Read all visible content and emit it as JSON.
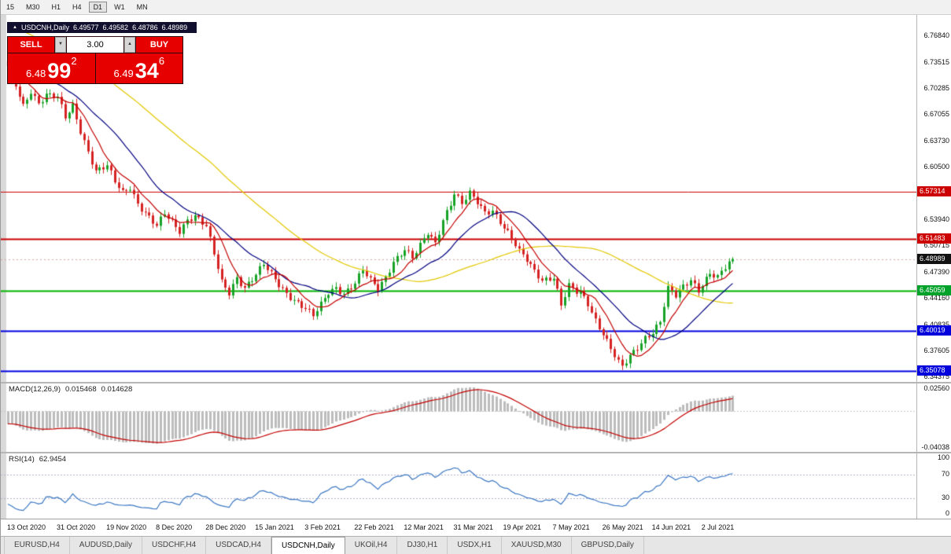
{
  "toolbar": {
    "periods": [
      {
        "label": "15",
        "active": false
      },
      {
        "label": "M30",
        "active": false
      },
      {
        "label": "H1",
        "active": false
      },
      {
        "label": "H4",
        "active": false
      },
      {
        "label": "D1",
        "active": true
      },
      {
        "label": "W1",
        "active": false
      },
      {
        "label": "MN",
        "active": false
      }
    ]
  },
  "chart": {
    "symbol_period": "USDCNH,Daily",
    "open": "6.49577",
    "high": "6.49582",
    "low": "6.48786",
    "close": "6.48989"
  },
  "trade_panel": {
    "sell_label": "SELL",
    "buy_label": "BUY",
    "volume": "3.00",
    "sell_price": {
      "prefix": "6.48",
      "big": "99",
      "sup": "2"
    },
    "buy_price": {
      "prefix": "6.49",
      "big": "34",
      "sup": "6"
    }
  },
  "price_axis": {
    "ticks": [
      "6.76840",
      "6.73515",
      "6.70285",
      "6.67055",
      "6.63730",
      "6.60500",
      "6.53940",
      "6.50715",
      "6.47390",
      "6.44160",
      "6.40835",
      "6.37605",
      "6.34375"
    ],
    "badges": [
      {
        "text": "6.57314",
        "value": 6.57314,
        "color": "#cc0000",
        "name": "resistance-badge-1"
      },
      {
        "text": "6.51483",
        "value": 6.51483,
        "color": "#cc0000",
        "name": "resistance-badge-2"
      },
      {
        "text": "6.48989",
        "value": 6.48989,
        "color": "#111111",
        "name": "current-price-badge"
      },
      {
        "text": "6.45059",
        "value": 6.45059,
        "color": "#00a22a",
        "name": "support-badge-green"
      },
      {
        "text": "6.40019",
        "value": 6.40019,
        "color": "#0000dd",
        "name": "support-badge-blue-1"
      },
      {
        "text": "6.35078",
        "value": 6.35078,
        "color": "#0000dd",
        "name": "support-badge-blue-2"
      }
    ]
  },
  "macd": {
    "label": "MACD(12,26,9)",
    "main_value": "0.015468",
    "signal_value": "0.014628",
    "axis_top": "0.02560",
    "axis_bottom": "-0.04038"
  },
  "rsi": {
    "label": "RSI(14)",
    "value": "62.9454",
    "axis_100": "100",
    "axis_70": "70",
    "axis_30": "30",
    "axis_0": "0"
  },
  "date_axis": [
    "13 Oct 2020",
    "31 Oct 2020",
    "19 Nov 2020",
    "8 Dec 2020",
    "28 Dec 2020",
    "15 Jan 2021",
    "3 Feb 2021",
    "22 Feb 2021",
    "12 Mar 2021",
    "31 Mar 2021",
    "19 Apr 2021",
    "7 May 2021",
    "26 May 2021",
    "14 Jun 2021",
    "2 Jul 2021"
  ],
  "tabs": [
    {
      "label": "EURUSD,H4",
      "active": false
    },
    {
      "label": "AUDUSD,Daily",
      "active": false
    },
    {
      "label": "USDCHF,H4",
      "active": false
    },
    {
      "label": "USDCAD,H4",
      "active": false
    },
    {
      "label": "USDCNH,Daily",
      "active": true
    },
    {
      "label": "UKOil,H4",
      "active": false
    },
    {
      "label": "DJ30,H1",
      "active": false
    },
    {
      "label": "USDX,H1",
      "active": false
    },
    {
      "label": "XAUUSD,M30",
      "active": false
    },
    {
      "label": "GBPUSD,Daily",
      "active": false
    }
  ],
  "chart_data": {
    "type": "candlestick",
    "symbol": "USDCNH",
    "timeframe": "Daily",
    "candle_count": 191,
    "label_step": 13,
    "last_close": 6.48989,
    "y_range": [
      6.3368,
      6.7938
    ],
    "close_anchors": [
      [
        0,
        6.728
      ],
      [
        2,
        6.705
      ],
      [
        4,
        6.68
      ],
      [
        6,
        6.7
      ],
      [
        8,
        6.685
      ],
      [
        10,
        6.695
      ],
      [
        13,
        6.69
      ],
      [
        15,
        6.665
      ],
      [
        17,
        6.68
      ],
      [
        19,
        6.65
      ],
      [
        21,
        6.625
      ],
      [
        23,
        6.6
      ],
      [
        26,
        6.605
      ],
      [
        28,
        6.585
      ],
      [
        30,
        6.572
      ],
      [
        32,
        6.58
      ],
      [
        34,
        6.56
      ],
      [
        36,
        6.548
      ],
      [
        39,
        6.53
      ],
      [
        41,
        6.545
      ],
      [
        43,
        6.535
      ],
      [
        45,
        6.525
      ],
      [
        47,
        6.54
      ],
      [
        49,
        6.545
      ],
      [
        52,
        6.53
      ],
      [
        54,
        6.495
      ],
      [
        56,
        6.46
      ],
      [
        58,
        6.448
      ],
      [
        60,
        6.468
      ],
      [
        62,
        6.455
      ],
      [
        65,
        6.47
      ],
      [
        67,
        6.482
      ],
      [
        69,
        6.47
      ],
      [
        71,
        6.458
      ],
      [
        73,
        6.448
      ],
      [
        75,
        6.44
      ],
      [
        78,
        6.428
      ],
      [
        80,
        6.418
      ],
      [
        82,
        6.432
      ],
      [
        84,
        6.448
      ],
      [
        86,
        6.455
      ],
      [
        88,
        6.448
      ],
      [
        91,
        6.46
      ],
      [
        93,
        6.475
      ],
      [
        95,
        6.462
      ],
      [
        97,
        6.452
      ],
      [
        99,
        6.468
      ],
      [
        101,
        6.488
      ],
      [
        104,
        6.502
      ],
      [
        106,
        6.49
      ],
      [
        108,
        6.505
      ],
      [
        110,
        6.522
      ],
      [
        112,
        6.51
      ],
      [
        114,
        6.54
      ],
      [
        116,
        6.56
      ],
      [
        117,
        6.572
      ],
      [
        119,
        6.558
      ],
      [
        121,
        6.57
      ],
      [
        123,
        6.56
      ],
      [
        125,
        6.548
      ],
      [
        127,
        6.552
      ],
      [
        130,
        6.53
      ],
      [
        132,
        6.515
      ],
      [
        134,
        6.498
      ],
      [
        136,
        6.488
      ],
      [
        138,
        6.475
      ],
      [
        140,
        6.465
      ],
      [
        143,
        6.468
      ],
      [
        145,
        6.432
      ],
      [
        147,
        6.455
      ],
      [
        149,
        6.448
      ],
      [
        150,
        6.448
      ],
      [
        152,
        6.435
      ],
      [
        154,
        6.415
      ],
      [
        156,
        6.398
      ],
      [
        158,
        6.378
      ],
      [
        160,
        6.36
      ],
      [
        161,
        6.354
      ],
      [
        163,
        6.368
      ],
      [
        165,
        6.38
      ],
      [
        167,
        6.393
      ],
      [
        169,
        6.4
      ],
      [
        171,
        6.412
      ],
      [
        173,
        6.452
      ],
      [
        175,
        6.443
      ],
      [
        177,
        6.455
      ],
      [
        179,
        6.465
      ],
      [
        181,
        6.452
      ],
      [
        182,
        6.46
      ],
      [
        184,
        6.472
      ],
      [
        186,
        6.466
      ],
      [
        188,
        6.478
      ],
      [
        190,
        6.48989
      ]
    ],
    "levels": [
      {
        "value": 6.57314,
        "color": "#cc0000",
        "width": 1
      },
      {
        "value": 6.51483,
        "color": "#cc0000",
        "width": 2
      },
      {
        "value": 6.45059,
        "color": "#00b400",
        "width": 2
      },
      {
        "value": 6.40019,
        "color": "#0000e0",
        "width": 2
      },
      {
        "value": 6.35078,
        "color": "#0000e0",
        "width": 2
      }
    ],
    "moving_averages": [
      {
        "period": 55,
        "color": "#e3c800"
      },
      {
        "period": 20,
        "color": "#000080"
      },
      {
        "period": 8,
        "color": "#c40000"
      }
    ],
    "macd_scale": {
      "max": 0.0256,
      "min": -0.04038
    },
    "rsi_dashed_levels": [
      70,
      30
    ]
  },
  "colors": {
    "candle_up": "#18a327",
    "candle_down": "#d62222",
    "macd_histogram": "#bcbcbc",
    "macd_signal": "#c40000",
    "rsi_line": "#3b77c2"
  }
}
